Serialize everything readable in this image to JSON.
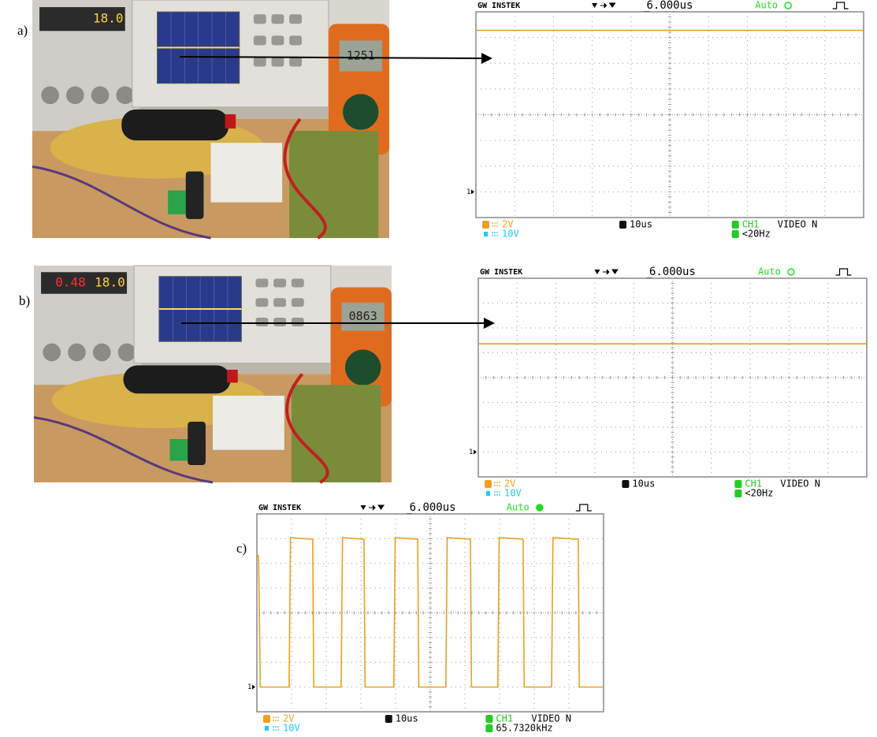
{
  "panels": [
    {
      "label": "a)",
      "photo": {
        "supply_display": "18.0",
        "meter_display": "1251"
      },
      "scope": {
        "brand": "GW INSTEK",
        "horizontal_position": "6.000us",
        "trigger_mode": "Auto",
        "ch1_scale": "2V",
        "ch2_scale": "10V",
        "timebase": "10us",
        "trigger_source": "CH1",
        "trigger_type": "VIDEO N",
        "readout": "<20Hz",
        "ground_marker": "1"
      }
    },
    {
      "label": "b)",
      "photo": {
        "supply_current": "0.48",
        "supply_display": "18.0",
        "meter_display": "0863"
      },
      "scope": {
        "brand": "GW INSTEK",
        "horizontal_position": "6.000us",
        "trigger_mode": "Auto",
        "ch1_scale": "2V",
        "ch2_scale": "10V",
        "timebase": "10us",
        "trigger_source": "CH1",
        "trigger_type": "VIDEO N",
        "readout": "<20Hz",
        "ground_marker": "1"
      }
    },
    {
      "label": "c)",
      "scope": {
        "brand": "GW INSTEK",
        "horizontal_position": "6.000us",
        "trigger_mode": "Auto",
        "ch1_scale": "2V",
        "ch2_scale": "10V",
        "timebase": "10us",
        "trigger_source": "CH1",
        "trigger_type": "VIDEO N",
        "readout": "65.7320kHz",
        "ground_marker": "1"
      }
    }
  ]
}
